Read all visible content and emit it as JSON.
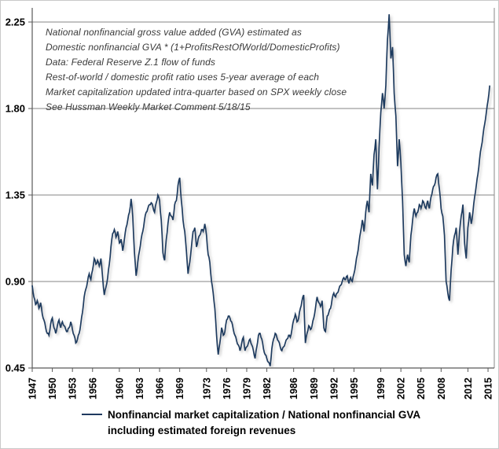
{
  "chart_data": {
    "type": "line",
    "title": "",
    "xlabel": "",
    "ylabel": "",
    "ylim": [
      0.45,
      2.25
    ],
    "xlim": [
      1947,
      2016
    ],
    "y_ticks": [
      0.45,
      0.9,
      1.35,
      1.8,
      2.25
    ],
    "x_ticks": [
      1947,
      1950,
      1953,
      1956,
      1960,
      1963,
      1966,
      1969,
      1973,
      1976,
      1979,
      1982,
      1986,
      1989,
      1992,
      1995,
      1999,
      2002,
      2005,
      2008,
      2012,
      2015
    ],
    "grid": "horizontal-gray",
    "legend_position": "bottom",
    "series": [
      {
        "name": "Nonfinancial market capitalization / National nonfinancial GVA including estimated foreign revenues",
        "color": "#1f3a5f",
        "x_start": 1947,
        "x_step": 0.25,
        "values": [
          0.88,
          0.82,
          0.78,
          0.8,
          0.76,
          0.79,
          0.73,
          0.7,
          0.66,
          0.63,
          0.62,
          0.68,
          0.71,
          0.66,
          0.63,
          0.67,
          0.7,
          0.66,
          0.69,
          0.67,
          0.65,
          0.64,
          0.66,
          0.69,
          0.65,
          0.62,
          0.58,
          0.6,
          0.63,
          0.68,
          0.74,
          0.82,
          0.86,
          0.9,
          0.94,
          0.91,
          0.96,
          1.02,
          0.99,
          1.01,
          0.98,
          1.02,
          0.92,
          0.83,
          0.87,
          0.92,
          0.99,
          1.08,
          1.15,
          1.17,
          1.13,
          1.16,
          1.1,
          1.12,
          1.06,
          1.12,
          1.18,
          1.22,
          1.26,
          1.33,
          1.24,
          1.05,
          0.93,
          1.0,
          1.06,
          1.12,
          1.16,
          1.22,
          1.26,
          1.28,
          1.3,
          1.31,
          1.29,
          1.26,
          1.31,
          1.35,
          1.32,
          1.22,
          1.05,
          1.01,
          1.12,
          1.2,
          1.26,
          1.24,
          1.22,
          1.3,
          1.32,
          1.4,
          1.44,
          1.32,
          1.22,
          1.16,
          1.06,
          0.94,
          1.0,
          1.08,
          1.16,
          1.18,
          1.08,
          1.12,
          1.14,
          1.17,
          1.16,
          1.2,
          1.14,
          1.04,
          1.0,
          0.9,
          0.84,
          0.76,
          0.62,
          0.52,
          0.58,
          0.66,
          0.62,
          0.64,
          0.7,
          0.72,
          0.71,
          0.69,
          0.65,
          0.62,
          0.59,
          0.57,
          0.54,
          0.58,
          0.61,
          0.54,
          0.56,
          0.58,
          0.6,
          0.57,
          0.54,
          0.5,
          0.56,
          0.62,
          0.63,
          0.6,
          0.55,
          0.52,
          0.5,
          0.48,
          0.46,
          0.55,
          0.6,
          0.63,
          0.61,
          0.59,
          0.56,
          0.54,
          0.56,
          0.58,
          0.6,
          0.62,
          0.61,
          0.65,
          0.7,
          0.73,
          0.69,
          0.71,
          0.76,
          0.8,
          0.83,
          0.58,
          0.63,
          0.67,
          0.65,
          0.67,
          0.71,
          0.76,
          0.82,
          0.79,
          0.77,
          0.8,
          0.66,
          0.64,
          0.72,
          0.74,
          0.76,
          0.81,
          0.84,
          0.82,
          0.84,
          0.86,
          0.88,
          0.9,
          0.92,
          0.91,
          0.93,
          0.89,
          0.92,
          0.9,
          0.94,
          0.99,
          1.04,
          1.1,
          1.16,
          1.22,
          1.16,
          1.26,
          1.32,
          1.26,
          1.46,
          1.4,
          1.56,
          1.64,
          1.38,
          1.6,
          1.78,
          1.88,
          1.8,
          1.92,
          2.16,
          2.29,
          2.06,
          2.12,
          1.88,
          1.76,
          1.5,
          1.64,
          1.52,
          1.32,
          1.04,
          0.98,
          1.04,
          1.0,
          1.14,
          1.22,
          1.28,
          1.24,
          1.26,
          1.3,
          1.28,
          1.32,
          1.3,
          1.28,
          1.32,
          1.28,
          1.34,
          1.38,
          1.4,
          1.44,
          1.46,
          1.38,
          1.28,
          1.24,
          1.14,
          0.9,
          0.84,
          0.8,
          0.96,
          1.08,
          1.14,
          1.18,
          1.04,
          1.16,
          1.24,
          1.3,
          1.1,
          1.02,
          1.18,
          1.26,
          1.2,
          1.26,
          1.34,
          1.4,
          1.46,
          1.54,
          1.6,
          1.66,
          1.72,
          1.78,
          1.84,
          1.92
        ]
      }
    ]
  },
  "annotation": {
    "lines": [
      "National nonfinancial gross value added (GVA) estimated as",
      "Domestic nonfinancial GVA * (1+ProfitsRestOfWorld/DomesticProfits)",
      "Data: Federal Reserve Z.1 flow of funds",
      "Rest-of-world / domestic profit ratio uses 5-year average of each",
      "Market capitalization updated intra-quarter based on SPX weekly close",
      "See Hussman Weekly Market Comment 5/18/15"
    ]
  },
  "legend": {
    "line1": "Nonfinancial market capitalization / National nonfinancial GVA",
    "line2": "including estimated foreign revenues"
  },
  "colors": {
    "line": "#1f3a5f",
    "gridline": "#848484",
    "axis": "#595959",
    "right_border": "#8a8a8a",
    "tick_label": "#000000",
    "annotation_text": "#3a3a3a",
    "background": "#ffffff"
  }
}
